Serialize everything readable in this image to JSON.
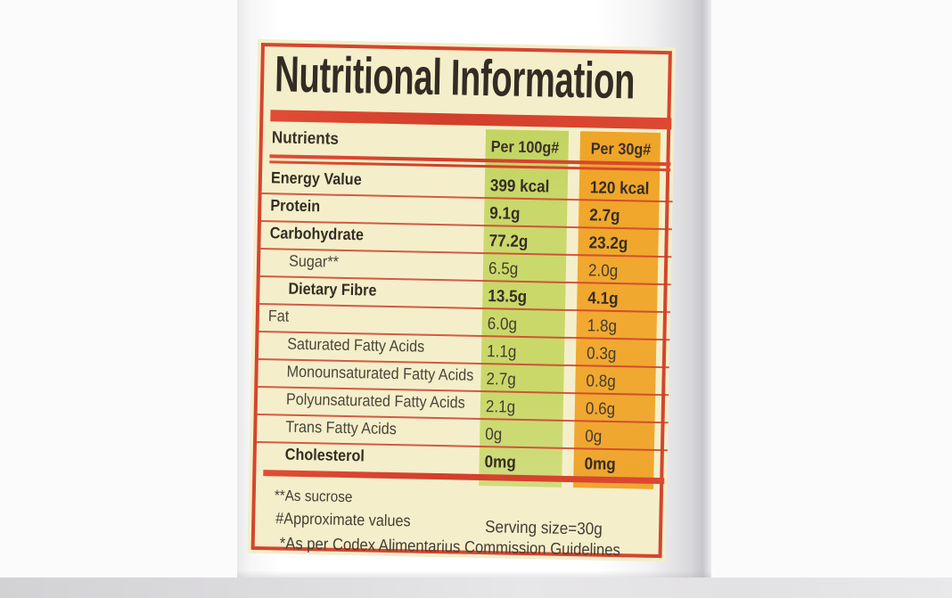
{
  "label": {
    "title": "Nutritional Information",
    "table": {
      "headers": {
        "nutrients": "Nutrients",
        "per100": "Per 100g#",
        "per30": "Per 30g#"
      },
      "rows": [
        {
          "name": "Energy Value",
          "per100": "399 kcal",
          "per30": "120 kcal",
          "bold": true,
          "indent": false
        },
        {
          "name": "Protein",
          "per100": "9.1g",
          "per30": "2.7g",
          "bold": true,
          "indent": false
        },
        {
          "name": "Carbohydrate",
          "per100": "77.2g",
          "per30": "23.2g",
          "bold": true,
          "indent": false
        },
        {
          "name": "Sugar**",
          "per100": "6.5g",
          "per30": "2.0g",
          "bold": false,
          "indent": true
        },
        {
          "name": "Dietary Fibre",
          "per100": "13.5g",
          "per30": "4.1g",
          "bold": true,
          "indent": true
        },
        {
          "name": "Fat",
          "per100": "6.0g",
          "per30": "1.8g",
          "bold": false,
          "indent": false
        },
        {
          "name": "Saturated Fatty Acids",
          "per100": "1.1g",
          "per30": "0.3g",
          "bold": false,
          "indent": true
        },
        {
          "name": "Monounsaturated Fatty Acids",
          "per100": "2.7g",
          "per30": "0.8g",
          "bold": false,
          "indent": true
        },
        {
          "name": "Polyunsaturated Fatty Acids",
          "per100": "2.1g",
          "per30": "0.6g",
          "bold": false,
          "indent": true
        },
        {
          "name": "Trans Fatty Acids",
          "per100": "0g",
          "per30": "0g",
          "bold": false,
          "indent": true
        },
        {
          "name": "Cholesterol",
          "per100": "0mg",
          "per30": "0mg",
          "bold": true,
          "indent": true
        }
      ]
    },
    "footnotes": {
      "sucrose": "**As sucrose",
      "approx": "#Approximate values",
      "serving": "Serving size=30g",
      "codex": "*As per Codex Alimentarius Commission Guidelines"
    },
    "colors": {
      "border_red": "#d5452f",
      "column_green": "#c9d868",
      "column_orange": "#f0a72e",
      "label_cream": "#f4efca",
      "text_dark": "#352d23"
    }
  }
}
